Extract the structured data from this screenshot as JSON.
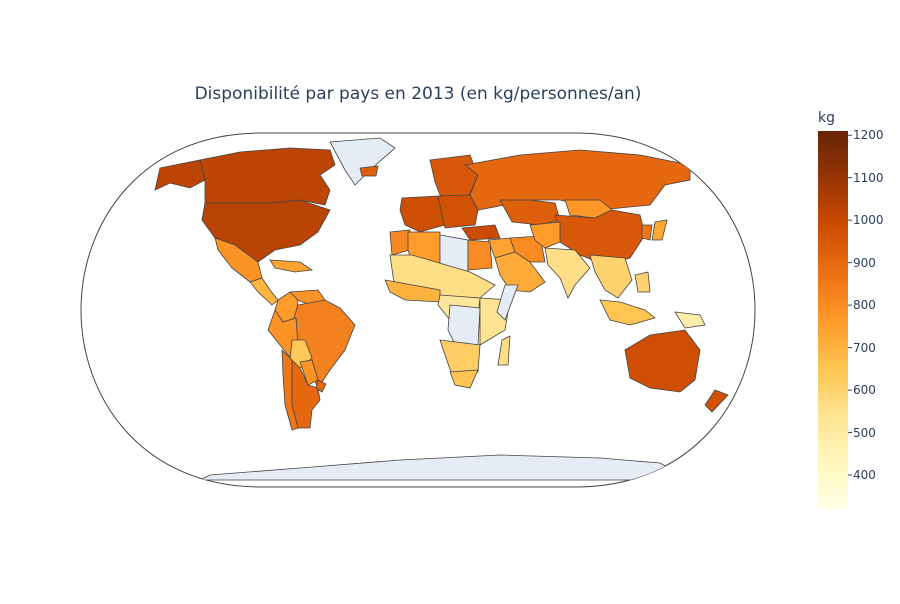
{
  "title": "Disponibilité par pays en 2013 (en kg/personnes/an)",
  "colorbar": {
    "title": "kg",
    "ticks": [
      "1200",
      "1100",
      "1000",
      "900",
      "800",
      "700",
      "600",
      "500",
      "400"
    ],
    "range": [
      320,
      1210
    ],
    "colorscale": [
      "#ffffe5",
      "#fff7bc",
      "#fee391",
      "#fec44f",
      "#fe9929",
      "#ec7014",
      "#cc4c02",
      "#993404",
      "#662506"
    ]
  },
  "map": {
    "projection": "natural earth",
    "no_data_color": "#e5ecf6",
    "border_color": "#444444",
    "regions": [
      {
        "name": "Canada",
        "value": 1020
      },
      {
        "name": "Alaska",
        "value": 1020
      },
      {
        "name": "United States",
        "value": 1030
      },
      {
        "name": "Greenland",
        "value": null
      },
      {
        "name": "Mexico",
        "value": 780
      },
      {
        "name": "Central America",
        "value": 690
      },
      {
        "name": "Caribbean",
        "value": 740
      },
      {
        "name": "Colombia",
        "value": 760
      },
      {
        "name": "Venezuela",
        "value": 780
      },
      {
        "name": "Brazil",
        "value": 830
      },
      {
        "name": "Peru",
        "value": 780
      },
      {
        "name": "Bolivia",
        "value": 640
      },
      {
        "name": "Paraguay",
        "value": 780
      },
      {
        "name": "Argentina",
        "value": 900
      },
      {
        "name": "Chile",
        "value": 860
      },
      {
        "name": "Uruguay",
        "value": 900
      },
      {
        "name": "Iceland",
        "value": 930
      },
      {
        "name": "Scandinavia",
        "value": 950
      },
      {
        "name": "Western Europe",
        "value": 980
      },
      {
        "name": "Eastern Europe",
        "value": 970
      },
      {
        "name": "Russia",
        "value": 900
      },
      {
        "name": "Kazakhstan",
        "value": 930
      },
      {
        "name": "Mongolia",
        "value": 770
      },
      {
        "name": "China",
        "value": 950
      },
      {
        "name": "Japan",
        "value": 730
      },
      {
        "name": "Korea",
        "value": 860
      },
      {
        "name": "Turkey",
        "value": 990
      },
      {
        "name": "Middle East",
        "value": 740
      },
      {
        "name": "Arabian Peninsula",
        "value": 720
      },
      {
        "name": "Iran",
        "value": 800
      },
      {
        "name": "Central Asia",
        "value": 760
      },
      {
        "name": "India",
        "value": 560
      },
      {
        "name": "Southeast Asia",
        "value": 600
      },
      {
        "name": "Indonesia",
        "value": 650
      },
      {
        "name": "Papua New Guinea",
        "value": 480
      },
      {
        "name": "Philippines",
        "value": 600
      },
      {
        "name": "Australia",
        "value": 980
      },
      {
        "name": "New Zealand",
        "value": 970
      },
      {
        "name": "Morocco",
        "value": 810
      },
      {
        "name": "Algeria",
        "value": 760
      },
      {
        "name": "Libya",
        "value": null
      },
      {
        "name": "Egypt",
        "value": 800
      },
      {
        "name": "Sahel",
        "value": 560
      },
      {
        "name": "West Africa",
        "value": 700
      },
      {
        "name": "Central Africa",
        "value": 520
      },
      {
        "name": "DR Congo",
        "value": null
      },
      {
        "name": "East Africa",
        "value": 540
      },
      {
        "name": "Somalia",
        "value": null
      },
      {
        "name": "Southern Africa",
        "value": 620
      },
      {
        "name": "South Africa",
        "value": 650
      },
      {
        "name": "Madagascar",
        "value": 560
      },
      {
        "name": "Antarctica",
        "value": null
      }
    ]
  }
}
